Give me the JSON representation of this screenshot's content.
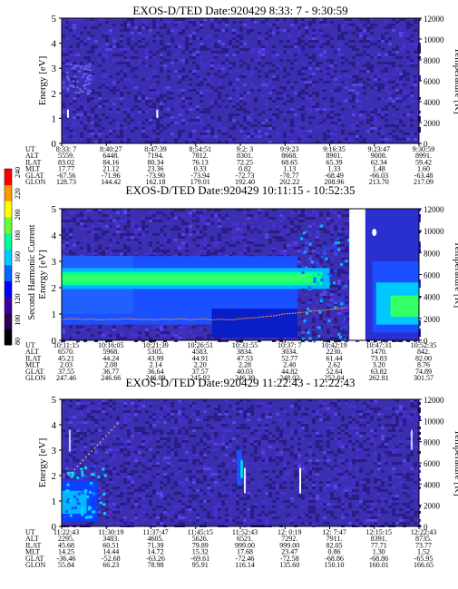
{
  "chart_data": {
    "type": "heatmap",
    "colorbar": {
      "label": "Second Harmonic Current",
      "ticks": [
        "240",
        "220",
        "200",
        "180",
        "160",
        "140",
        "120",
        "100",
        "80"
      ],
      "colors": [
        "#000000",
        "#2a0050",
        "#3a00a0",
        "#0000ff",
        "#0066ff",
        "#00ccff",
        "#00ff99",
        "#66ff33",
        "#ffff00",
        "#ff9900",
        "#ff0000"
      ]
    },
    "panels": [
      {
        "title": "EXOS-D/TED   Date:920429   8:33: 7 - 9:30:59",
        "ylabel": "Energy [eV]",
        "y2label": "Temperature [K]",
        "ylim": [
          0,
          5
        ],
        "y2lim": [
          0,
          12000
        ],
        "yticks": [
          "5",
          "4",
          "3",
          "2",
          "1",
          "0"
        ],
        "y2ticks": [
          "12000",
          "10000",
          "8000",
          "6000",
          "4000",
          "2000",
          "0"
        ],
        "rows": [
          "UT",
          "ALT",
          "ILAT",
          "MLT",
          "GLAT",
          "GLON"
        ],
        "columns": [
          [
            "8:33: 7",
            "5559.",
            "83.02",
            "17.77",
            "-67.56",
            "128.73"
          ],
          [
            "8:40:27",
            "6448.",
            "84.16",
            "21.12",
            "-71.96",
            "144.42"
          ],
          [
            "8:47:39",
            "7194.",
            "80.34",
            "23.36",
            "-73.90",
            "162.18"
          ],
          [
            "8:54:51",
            "7812.",
            "76.13",
            "0.33",
            "-73.94",
            "179.01"
          ],
          [
            "9:2: 3",
            "8301.",
            "72.25",
            "0.82",
            "-72.73",
            "192.40"
          ],
          [
            "9:9:23",
            "8668.",
            "68.65",
            "1.13",
            "-70.77",
            "202.22"
          ],
          [
            "9:16:35",
            "8901.",
            "65.39",
            "1.33",
            "-68.49",
            "208.96"
          ],
          [
            "9:23:47",
            "9008.",
            "62.34",
            "1.48",
            "-66.03",
            "213.70"
          ],
          [
            "9:30:59",
            "8991.",
            "59.42",
            "1.60",
            "-63.48",
            "217.09"
          ]
        ]
      },
      {
        "title": "EXOS-D/TED   Date:920429   10:11:15 - 10:52:35",
        "ylabel": "Energy [eV]",
        "y2label": "Temperature [K]",
        "ylim": [
          0,
          5
        ],
        "y2lim": [
          0,
          12000
        ],
        "yticks": [
          "5",
          "4",
          "3",
          "2",
          "1",
          "0"
        ],
        "y2ticks": [
          "12000",
          "10000",
          "8000",
          "6000",
          "4000",
          "2000",
          "0"
        ],
        "rows": [
          "UT",
          "ALT",
          "ILAT",
          "MLT",
          "GLAT",
          "GLON"
        ],
        "columns": [
          [
            "10:11:15",
            "6570.",
            "45.21",
            "2.03",
            "37.55",
            "247.46"
          ],
          [
            "10:16:05",
            "5968.",
            "44.24",
            "2.08",
            "36.77",
            "246.66"
          ],
          [
            "10:21:39",
            "5305.",
            "43.99",
            "2.14",
            "36.64",
            "246.09"
          ],
          [
            "10:26:51",
            "4583.",
            "44.91",
            "2.20",
            "37.57",
            "245.92"
          ],
          [
            "10:31:55",
            "3834.",
            "47.53",
            "2.28",
            "40.03",
            "246.39"
          ],
          [
            "10:37: 7",
            "3034.",
            "52.77",
            "2.40",
            "44.82",
            "248.02"
          ],
          [
            "10:42:19",
            "2230.",
            "61.44",
            "2.62",
            "52.64",
            "252.04"
          ],
          [
            "10:47:31",
            "1470.",
            "73.83",
            "3.20",
            "63.82",
            "262.81"
          ],
          [
            "10:52:35",
            "842.",
            "82.00",
            "8.76",
            "74.89",
            "301.57"
          ]
        ]
      },
      {
        "title": "EXOS-D/TED   Date:920429   11:22:43 - 12:22:43",
        "ylabel": "Energy [eV]",
        "y2label": "Temperature [K]",
        "ylim": [
          0,
          5
        ],
        "y2lim": [
          0,
          12000
        ],
        "yticks": [
          "5",
          "4",
          "3",
          "2",
          "1",
          "0"
        ],
        "y2ticks": [
          "12000",
          "10000",
          "8000",
          "6000",
          "4000",
          "2000",
          "0"
        ],
        "rows": [
          "UT",
          "ALT",
          "ILAT",
          "MLT",
          "GLAT",
          "GLON"
        ],
        "columns": [
          [
            "11:22:43",
            "2295.",
            "45.68",
            "14.25",
            "-36.46",
            "55.84"
          ],
          [
            "11:30:19",
            "3483.",
            "60.51",
            "14.44",
            "-52.68",
            "66.23"
          ],
          [
            "11:37:47",
            "4605.",
            "71.39",
            "14.72",
            "-63.26",
            "78.98"
          ],
          [
            "11:45:15",
            "5626.",
            "79.89",
            "15.32",
            "-69.61",
            "95.91"
          ],
          [
            "11:52:43",
            "6521.",
            "999.00",
            "17.68",
            "-72.46",
            "116.14"
          ],
          [
            "12: 0:19",
            "7292.",
            "999.00",
            "23.47",
            "-72.58",
            "135.60"
          ],
          [
            "12: 7:47",
            "7911.",
            "82.05",
            "0.86",
            "-68.86",
            "150.10"
          ],
          [
            "12:15:15",
            "8391.",
            "77.71",
            "1.30",
            "-68.86",
            "160.01"
          ],
          [
            "12:22:43",
            "8735.",
            "73.77",
            "1.52",
            "-65.95",
            "166.65"
          ]
        ]
      }
    ]
  }
}
